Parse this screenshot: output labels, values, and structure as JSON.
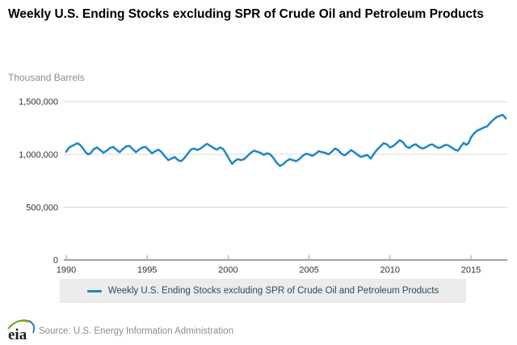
{
  "header": {
    "title": "Weekly U.S. Ending Stocks excluding SPR of Crude Oil and Petroleum Products",
    "unit_label": "Thousand Barrels"
  },
  "legend": {
    "label": "Weekly U.S. Ending Stocks excluding SPR of Crude Oil and Petroleum Products"
  },
  "footer": {
    "logo_text": "eia",
    "source": "Source: U.S. Energy Information Administration"
  },
  "colors": {
    "line": "#1e87c6",
    "grid": "#dadada",
    "axis": "#9a9a9a",
    "tick_label": "#333333",
    "legend_bg": "#ececec",
    "legend_text": "#2b4a63",
    "unit_label": "#8c8c8c",
    "source_text": "#8c8c8c"
  },
  "chart_data": {
    "type": "line",
    "title": "Weekly U.S. Ending Stocks excluding SPR of Crude Oil and Petroleum Products",
    "xlabel": "",
    "ylabel": "Thousand Barrels",
    "xlim": [
      1989.85,
      2017.25
    ],
    "ylim": [
      0,
      1500000
    ],
    "grid": "horizontal",
    "legend_position": "bottom",
    "x_ticks": [
      1990,
      1995,
      2000,
      2005,
      2010,
      2015
    ],
    "x_tick_labels": [
      "1990",
      "1995",
      "2000",
      "2005",
      "2010",
      "2015"
    ],
    "y_ticks": [
      0,
      500000,
      1000000,
      1500000
    ],
    "y_tick_labels": [
      "0",
      "500,000",
      "1,000,000",
      "1,500,000"
    ],
    "series": [
      {
        "name": "Weekly U.S. Ending Stocks excluding SPR of Crude Oil and Petroleum Products",
        "color": "#1e87c6",
        "points": [
          [
            1990.0,
            1025000
          ],
          [
            1990.15,
            1060000
          ],
          [
            1990.3,
            1075000
          ],
          [
            1990.5,
            1090000
          ],
          [
            1990.7,
            1105000
          ],
          [
            1990.85,
            1090000
          ],
          [
            1991.0,
            1065000
          ],
          [
            1991.2,
            1020000
          ],
          [
            1991.35,
            1000000
          ],
          [
            1991.5,
            1010000
          ],
          [
            1991.7,
            1050000
          ],
          [
            1991.9,
            1065000
          ],
          [
            1992.1,
            1040000
          ],
          [
            1992.3,
            1015000
          ],
          [
            1992.5,
            1035000
          ],
          [
            1992.7,
            1060000
          ],
          [
            1992.9,
            1070000
          ],
          [
            1993.1,
            1045000
          ],
          [
            1993.3,
            1020000
          ],
          [
            1993.5,
            1050000
          ],
          [
            1993.7,
            1075000
          ],
          [
            1993.9,
            1080000
          ],
          [
            1994.1,
            1050000
          ],
          [
            1994.3,
            1020000
          ],
          [
            1994.5,
            1045000
          ],
          [
            1994.7,
            1065000
          ],
          [
            1994.9,
            1070000
          ],
          [
            1995.1,
            1040000
          ],
          [
            1995.3,
            1010000
          ],
          [
            1995.5,
            1030000
          ],
          [
            1995.7,
            1045000
          ],
          [
            1995.9,
            1020000
          ],
          [
            1996.1,
            980000
          ],
          [
            1996.3,
            945000
          ],
          [
            1996.5,
            960000
          ],
          [
            1996.7,
            975000
          ],
          [
            1996.9,
            945000
          ],
          [
            1997.1,
            935000
          ],
          [
            1997.3,
            965000
          ],
          [
            1997.5,
            1005000
          ],
          [
            1997.7,
            1045000
          ],
          [
            1997.9,
            1055000
          ],
          [
            1998.1,
            1040000
          ],
          [
            1998.3,
            1055000
          ],
          [
            1998.5,
            1080000
          ],
          [
            1998.7,
            1100000
          ],
          [
            1998.9,
            1080000
          ],
          [
            1999.1,
            1060000
          ],
          [
            1999.3,
            1045000
          ],
          [
            1999.5,
            1065000
          ],
          [
            1999.7,
            1050000
          ],
          [
            1999.9,
            1000000
          ],
          [
            2000.1,
            945000
          ],
          [
            2000.25,
            910000
          ],
          [
            2000.4,
            935000
          ],
          [
            2000.6,
            955000
          ],
          [
            2000.8,
            945000
          ],
          [
            2001.0,
            955000
          ],
          [
            2001.2,
            985000
          ],
          [
            2001.4,
            1015000
          ],
          [
            2001.6,
            1035000
          ],
          [
            2001.8,
            1025000
          ],
          [
            2002.0,
            1015000
          ],
          [
            2002.2,
            995000
          ],
          [
            2002.4,
            1010000
          ],
          [
            2002.6,
            1000000
          ],
          [
            2002.8,
            965000
          ],
          [
            2003.0,
            920000
          ],
          [
            2003.2,
            890000
          ],
          [
            2003.4,
            905000
          ],
          [
            2003.6,
            935000
          ],
          [
            2003.8,
            955000
          ],
          [
            2004.0,
            945000
          ],
          [
            2004.2,
            935000
          ],
          [
            2004.4,
            955000
          ],
          [
            2004.6,
            985000
          ],
          [
            2004.8,
            1005000
          ],
          [
            2005.0,
            1000000
          ],
          [
            2005.2,
            985000
          ],
          [
            2005.4,
            1005000
          ],
          [
            2005.6,
            1030000
          ],
          [
            2005.8,
            1020000
          ],
          [
            2006.0,
            1015000
          ],
          [
            2006.2,
            1000000
          ],
          [
            2006.4,
            1025000
          ],
          [
            2006.6,
            1055000
          ],
          [
            2006.8,
            1040000
          ],
          [
            2007.0,
            1005000
          ],
          [
            2007.2,
            990000
          ],
          [
            2007.4,
            1015000
          ],
          [
            2007.6,
            1040000
          ],
          [
            2007.8,
            1020000
          ],
          [
            2008.0,
            995000
          ],
          [
            2008.2,
            975000
          ],
          [
            2008.4,
            985000
          ],
          [
            2008.6,
            995000
          ],
          [
            2008.8,
            960000
          ],
          [
            2009.0,
            1005000
          ],
          [
            2009.2,
            1045000
          ],
          [
            2009.4,
            1075000
          ],
          [
            2009.6,
            1105000
          ],
          [
            2009.8,
            1095000
          ],
          [
            2010.0,
            1065000
          ],
          [
            2010.2,
            1080000
          ],
          [
            2010.4,
            1105000
          ],
          [
            2010.6,
            1135000
          ],
          [
            2010.8,
            1115000
          ],
          [
            2011.0,
            1075000
          ],
          [
            2011.2,
            1060000
          ],
          [
            2011.4,
            1085000
          ],
          [
            2011.6,
            1095000
          ],
          [
            2011.8,
            1070000
          ],
          [
            2012.0,
            1055000
          ],
          [
            2012.2,
            1065000
          ],
          [
            2012.4,
            1085000
          ],
          [
            2012.6,
            1095000
          ],
          [
            2012.8,
            1075000
          ],
          [
            2013.0,
            1060000
          ],
          [
            2013.2,
            1070000
          ],
          [
            2013.4,
            1090000
          ],
          [
            2013.6,
            1085000
          ],
          [
            2013.8,
            1065000
          ],
          [
            2014.0,
            1045000
          ],
          [
            2014.2,
            1035000
          ],
          [
            2014.4,
            1080000
          ],
          [
            2014.55,
            1110000
          ],
          [
            2014.7,
            1090000
          ],
          [
            2014.85,
            1105000
          ],
          [
            2015.0,
            1160000
          ],
          [
            2015.2,
            1200000
          ],
          [
            2015.4,
            1225000
          ],
          [
            2015.6,
            1240000
          ],
          [
            2015.8,
            1255000
          ],
          [
            2016.0,
            1265000
          ],
          [
            2016.2,
            1300000
          ],
          [
            2016.4,
            1330000
          ],
          [
            2016.6,
            1355000
          ],
          [
            2016.8,
            1365000
          ],
          [
            2016.95,
            1375000
          ],
          [
            2017.05,
            1360000
          ],
          [
            2017.15,
            1340000
          ]
        ]
      }
    ]
  }
}
